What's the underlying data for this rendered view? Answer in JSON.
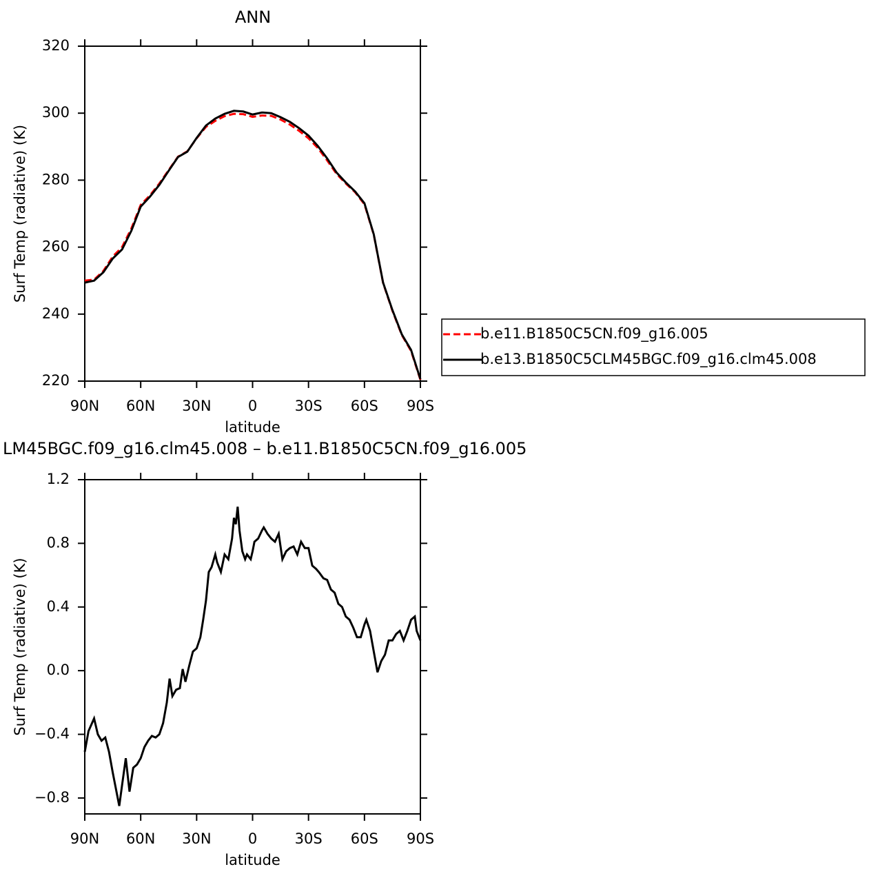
{
  "chart_data": [
    {
      "type": "line",
      "title": "ANN",
      "xlabel": "latitude",
      "ylabel": "Surf Temp (radiative) (K)",
      "x": [
        90,
        85,
        80,
        75,
        70,
        65,
        60,
        55,
        50,
        45,
        40,
        35,
        30,
        25,
        20,
        15,
        10,
        5,
        0,
        -5,
        -10,
        -15,
        -20,
        -25,
        -30,
        -35,
        -40,
        -45,
        -50,
        -55,
        -60,
        -65,
        -70,
        -75,
        -80,
        -85,
        -90
      ],
      "series": [
        {
          "name": "b.e11.B1850C5CN.f09_g16.005",
          "color": "#ff0000",
          "linestyle": "dashed",
          "values": [
            250.0,
            250.3,
            252.9,
            257.2,
            260.0,
            265.6,
            272.6,
            275.5,
            279.0,
            283.0,
            287.0,
            288.6,
            292.5,
            295.9,
            297.7,
            299.1,
            299.8,
            299.7,
            298.9,
            299.3,
            299.2,
            298.1,
            296.6,
            294.7,
            292.5,
            289.6,
            285.9,
            281.9,
            279.0,
            276.4,
            272.8,
            263.7,
            249.3,
            241.0,
            233.8,
            229.0,
            220.4
          ]
        },
        {
          "name": "b.e13.B1850C5CLM45BGC.f09_g16.clm45.008",
          "color": "#000000",
          "linestyle": "solid",
          "values": [
            249.4,
            250.0,
            252.5,
            256.6,
            259.3,
            264.9,
            272.1,
            275.1,
            278.6,
            282.8,
            286.9,
            288.5,
            292.6,
            296.3,
            298.4,
            299.8,
            300.7,
            300.5,
            299.6,
            300.2,
            300.0,
            298.8,
            297.4,
            295.5,
            293.3,
            290.2,
            286.5,
            282.3,
            279.3,
            276.6,
            273.1,
            263.8,
            249.4,
            241.2,
            234.0,
            229.3,
            220.6
          ]
        }
      ],
      "xlim": [
        90,
        -90
      ],
      "xticks": [
        {
          "value": 90,
          "label": "90N"
        },
        {
          "value": 60,
          "label": "60N"
        },
        {
          "value": 30,
          "label": "30N"
        },
        0,
        {
          "value": -30,
          "label": "30S"
        },
        {
          "value": -60,
          "label": "60S"
        },
        {
          "value": -90,
          "label": "90S"
        }
      ],
      "ylim": [
        220,
        320
      ],
      "yticks": [
        220,
        240,
        260,
        280,
        300,
        320
      ],
      "legend": true
    },
    {
      "type": "line",
      "title": "LM45BGC.f09_g16.clm45.008 – b.e11.B1850C5CN.f09_g16.005",
      "xlabel": "latitude",
      "ylabel": "Surf Temp (radiative) (K)",
      "x": [
        90,
        88,
        85,
        83,
        81,
        79,
        77,
        75,
        73,
        71.5,
        70,
        68,
        66,
        64,
        62,
        60,
        58,
        56,
        54,
        52,
        50,
        48,
        46,
        44.5,
        43,
        41,
        39,
        37.5,
        36,
        34,
        32,
        30,
        28,
        26.5,
        25,
        23.5,
        22,
        20,
        19,
        17,
        15,
        13,
        11,
        10,
        9,
        8,
        7,
        5.5,
        4,
        3,
        1,
        0,
        -1,
        -3,
        -5,
        -6,
        -8,
        -10,
        -12,
        -14,
        -16,
        -18,
        -20,
        -22,
        -24,
        -26,
        -28,
        -30,
        -32,
        -34,
        -35.5,
        -38,
        -40,
        -42,
        -44,
        -46,
        -48,
        -50,
        -52,
        -54,
        -56,
        -58,
        -60,
        -61,
        -63,
        -65,
        -67,
        -69,
        -71,
        -73,
        -75,
        -77,
        -79,
        -81,
        -83,
        -85,
        -87,
        -88,
        -90
      ],
      "series": [
        {
          "name": null,
          "color": "#000000",
          "linestyle": "solid",
          "values": [
            -0.51,
            -0.38,
            -0.3,
            -0.4,
            -0.44,
            -0.42,
            -0.51,
            -0.64,
            -0.76,
            -0.85,
            -0.72,
            -0.55,
            -0.76,
            -0.61,
            -0.59,
            -0.55,
            -0.48,
            -0.44,
            -0.41,
            -0.42,
            -0.4,
            -0.33,
            -0.2,
            -0.05,
            -0.16,
            -0.12,
            -0.11,
            0.01,
            -0.07,
            0.03,
            0.12,
            0.14,
            0.21,
            0.32,
            0.44,
            0.62,
            0.65,
            0.73,
            0.68,
            0.62,
            0.73,
            0.7,
            0.83,
            0.96,
            0.92,
            1.03,
            0.88,
            0.75,
            0.7,
            0.73,
            0.7,
            0.75,
            0.81,
            0.83,
            0.88,
            0.9,
            0.86,
            0.83,
            0.81,
            0.86,
            0.7,
            0.75,
            0.77,
            0.78,
            0.73,
            0.81,
            0.77,
            0.77,
            0.66,
            0.64,
            0.62,
            0.58,
            0.57,
            0.51,
            0.49,
            0.42,
            0.4,
            0.34,
            0.32,
            0.27,
            0.21,
            0.21,
            0.29,
            0.32,
            0.25,
            0.12,
            -0.01,
            0.06,
            0.1,
            0.19,
            0.19,
            0.23,
            0.25,
            0.19,
            0.25,
            0.32,
            0.34,
            0.25,
            0.19
          ]
        }
      ],
      "xlim": [
        90,
        -90
      ],
      "xticks": [
        {
          "value": 90,
          "label": "90N"
        },
        {
          "value": 60,
          "label": "60N"
        },
        {
          "value": 30,
          "label": "30N"
        },
        0,
        {
          "value": -30,
          "label": "30S"
        },
        {
          "value": -60,
          "label": "60S"
        },
        {
          "value": -90,
          "label": "90S"
        }
      ],
      "ylim": [
        -0.9,
        1.2
      ],
      "yticks": [
        {
          "value": -0.8,
          "label": "−0.8"
        },
        {
          "value": -0.4,
          "label": "−0.4"
        },
        {
          "value": 0,
          "label": "0.0"
        },
        0.4,
        0.8,
        1.2
      ],
      "legend": false
    }
  ]
}
